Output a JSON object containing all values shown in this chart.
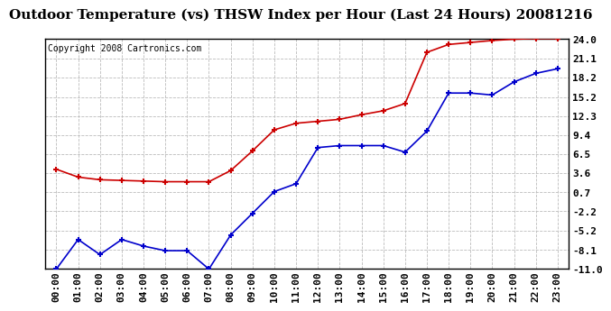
{
  "title": "Outdoor Temperature (vs) THSW Index per Hour (Last 24 Hours) 20081216",
  "copyright": "Copyright 2008 Cartronics.com",
  "hours": [
    "00:00",
    "01:00",
    "02:00",
    "03:00",
    "04:00",
    "05:00",
    "06:00",
    "07:00",
    "08:00",
    "09:00",
    "10:00",
    "11:00",
    "12:00",
    "13:00",
    "14:00",
    "15:00",
    "16:00",
    "17:00",
    "18:00",
    "19:00",
    "20:00",
    "21:00",
    "22:00",
    "23:00"
  ],
  "temp_red": [
    4.2,
    3.0,
    2.6,
    2.5,
    2.4,
    2.3,
    2.3,
    2.3,
    4.0,
    7.0,
    10.2,
    11.2,
    11.5,
    11.8,
    12.5,
    13.1,
    14.2,
    22.0,
    23.2,
    23.5,
    23.8,
    24.0,
    24.1,
    24.1
  ],
  "temp_blue": [
    -11.0,
    -6.5,
    -8.8,
    -6.5,
    -7.5,
    -8.2,
    -8.2,
    -11.0,
    -5.8,
    -2.5,
    0.8,
    2.0,
    7.5,
    7.8,
    7.8,
    7.8,
    6.8,
    10.0,
    15.8,
    15.8,
    15.5,
    17.5,
    18.8,
    19.5
  ],
  "yticks": [
    24.0,
    21.1,
    18.2,
    15.2,
    12.3,
    9.4,
    6.5,
    3.6,
    0.7,
    -2.2,
    -5.2,
    -8.1,
    -11.0
  ],
  "ymin": -11.0,
  "ymax": 24.0,
  "red_color": "#cc0000",
  "blue_color": "#0000cc",
  "bg_color": "#ffffff",
  "grid_color": "#bbbbbb",
  "title_fontsize": 11,
  "tick_label_fontsize": 8,
  "copyright_fontsize": 7
}
